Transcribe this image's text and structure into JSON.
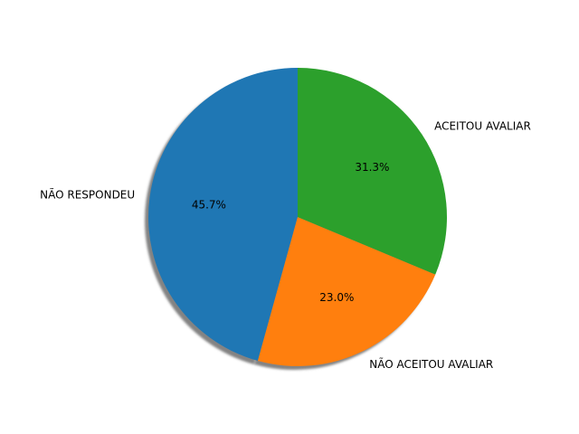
{
  "chart_data": {
    "type": "pie",
    "title": "",
    "slices": [
      {
        "label": "NÃO RESPONDEU",
        "value": 45.7,
        "pct_label": "45.7%",
        "color": "#1f77b4"
      },
      {
        "label": "NÃO ACEITOU AVALIAR",
        "value": 23.0,
        "pct_label": "23.0%",
        "color": "#ff7f0e"
      },
      {
        "label": "ACEITOU AVALIAR",
        "value": 31.3,
        "pct_label": "31.3%",
        "color": "#2ca02c"
      }
    ],
    "start_angle_deg": 90,
    "direction": "counterclockwise",
    "shadow": true,
    "legend": "none"
  }
}
